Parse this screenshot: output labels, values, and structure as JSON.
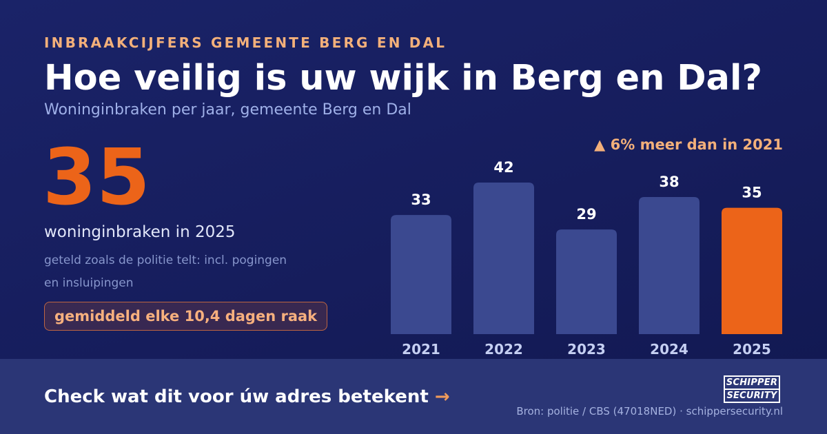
{
  "header": {
    "eyebrow": "INBRAAKCIJFERS GEMEENTE BERG EN DAL",
    "title": "Hoe veilig is uw wijk in Berg en Dal?",
    "subtitle": "Woninginbraken per jaar, gemeente Berg en Dal"
  },
  "highlight": {
    "number": "35",
    "caption": "woninginbraken in 2025",
    "note": "geteld zoals de politie telt: incl. pogingen en insluipingen",
    "pill": "gemiddeld elke 10,4 dagen raak"
  },
  "change_label": "▲ 6% meer dan in 2021",
  "chart_data": {
    "type": "bar",
    "title": "",
    "xlabel": "",
    "ylabel": "",
    "categories": [
      "2021",
      "2022",
      "2023",
      "2024",
      "2025"
    ],
    "values": [
      33,
      42,
      29,
      38,
      35
    ],
    "ylim": [
      0,
      42
    ],
    "grid": false,
    "legend": "none",
    "highlight_category": "2025",
    "colors": {
      "bar": "#3b4990",
      "highlight": "#ec6419",
      "value_label": "#ffffff",
      "tick_label": "#c5cff2"
    }
  },
  "footer": {
    "cta_text": "Check wat dit voor úw adres betekent",
    "cta_arrow": "→",
    "logo_line1": "SCHIPPER",
    "logo_line2": "SECURITY",
    "source": "Bron: politie / CBS (47018NED) · schippersecurity.nl"
  }
}
